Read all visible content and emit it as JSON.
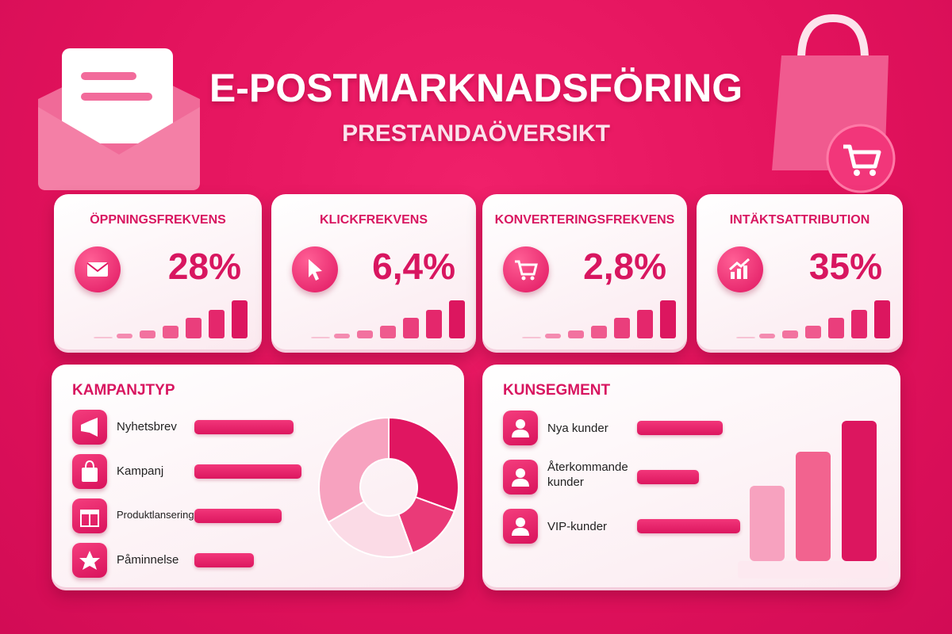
{
  "header": {
    "title": "E-POSTMARKNADSFÖRING",
    "subtitle": "PRESTANDAÖVERSIKT"
  },
  "kpis": [
    {
      "label": "ÖPPNINGSFREKVENS",
      "value": "28%"
    },
    {
      "label": "KLICKFREKVENS",
      "value": "6,4%"
    },
    {
      "label": "KONVERTERINGSFREKVENS",
      "value": "2,8%"
    },
    {
      "label": "INTÄKTSATTRIBUTION",
      "value": "35%"
    }
  ],
  "campaign_types": {
    "title": "KAMPANJTYP",
    "items": [
      "Nyhetsbrev",
      "Kampanj",
      "Produktlansering",
      "Påminnelse"
    ]
  },
  "segments": {
    "title": "KUNSEGMENT",
    "items": [
      "Nya kunder",
      "Återkommande kunder",
      "VIP-kunder"
    ]
  }
}
